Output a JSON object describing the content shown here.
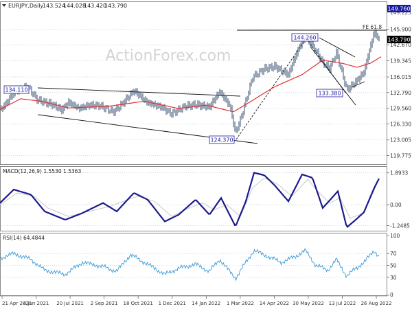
{
  "chart_data": [
    {
      "type": "bar",
      "subtype": "ohlc",
      "title": "EURJPY,Daily",
      "ohlc_readout": [
        "143.524",
        "144.028",
        "143.420",
        "143.790"
      ],
      "watermark": "ActionForex.com",
      "ylim": [
        118.0,
        151.5
      ],
      "y_ticks": [
        119.775,
        123.005,
        126.33,
        129.56,
        132.79,
        136.015,
        139.345,
        142.67,
        145.9
      ],
      "y_tick_labels": [
        "119.775",
        "123.005",
        "126.330",
        "129.560",
        "132.790",
        "136.015",
        "139.345",
        "142.670",
        "145.900"
      ],
      "partial_top_label": "149.225",
      "marker_labels": {
        "top": "149.760",
        "last_price": "143.790"
      },
      "annotations": [
        "134.110",
        "124.370",
        "144.260",
        "133.380",
        "FE 61.8"
      ],
      "x_labels": [
        "21 Apr 2021",
        "4 Jun 2021",
        "20 Jul 2021",
        "2 Sep 2021",
        "18 Oct 2021",
        "1 Dec 2021",
        "14 Jan 2022",
        "1 Mar 2022",
        "14 Apr 2022",
        "30 May 2022",
        "13 Jul 2022",
        "26 Aug 2022"
      ],
      "price_key_points": [
        [
          0,
          129.0
        ],
        [
          22,
          133.0
        ],
        [
          40,
          134.1
        ],
        [
          55,
          131.2
        ],
        [
          75,
          130.4
        ],
        [
          90,
          129.2
        ],
        [
          100,
          130.8
        ],
        [
          115,
          129.5
        ],
        [
          130,
          130.2
        ],
        [
          145,
          130.1
        ],
        [
          165,
          128.8
        ],
        [
          175,
          130.0
        ],
        [
          195,
          133.2
        ],
        [
          215,
          130.7
        ],
        [
          235,
          129.8
        ],
        [
          250,
          128.4
        ],
        [
          270,
          130.0
        ],
        [
          285,
          130.3
        ],
        [
          305,
          129.8
        ],
        [
          320,
          133.0
        ],
        [
          335,
          130.0
        ],
        [
          343,
          124.37
        ],
        [
          352,
          128.0
        ],
        [
          368,
          136.0
        ],
        [
          385,
          137.7
        ],
        [
          400,
          138.2
        ],
        [
          420,
          136.5
        ],
        [
          435,
          142.0
        ],
        [
          445,
          144.26
        ],
        [
          460,
          141.5
        ],
        [
          470,
          139.0
        ],
        [
          480,
          137.8
        ],
        [
          490,
          141.0
        ],
        [
          500,
          136.0
        ],
        [
          505,
          133.38
        ],
        [
          515,
          134.5
        ],
        [
          530,
          137.0
        ],
        [
          538,
          141.5
        ],
        [
          545,
          145.3
        ],
        [
          552,
          143.79
        ]
      ],
      "moving_average_key_points": [
        [
          0,
          129.3
        ],
        [
          30,
          131.5
        ],
        [
          60,
          131.0
        ],
        [
          100,
          129.6
        ],
        [
          160,
          130.0
        ],
        [
          210,
          131.0
        ],
        [
          260,
          129.5
        ],
        [
          300,
          130.2
        ],
        [
          340,
          128.8
        ],
        [
          360,
          130.5
        ],
        [
          400,
          134.0
        ],
        [
          440,
          136.5
        ],
        [
          470,
          139.5
        ],
        [
          500,
          138.8
        ],
        [
          520,
          138.0
        ],
        [
          540,
          138.9
        ],
        [
          555,
          140.2
        ]
      ]
    },
    {
      "type": "line",
      "title": "MACD(12,26,9) 1.5530 1.5363",
      "y_tick_labels": [
        "1.8933",
        "0.00",
        "-1.2485"
      ],
      "y_ticks": [
        1.8933,
        0.0,
        -1.2485
      ],
      "ylim": [
        -1.55,
        2.25
      ],
      "macd_key_points": [
        [
          0,
          0.1
        ],
        [
          20,
          0.9
        ],
        [
          45,
          0.6
        ],
        [
          65,
          -0.4
        ],
        [
          95,
          -0.9
        ],
        [
          120,
          -0.5
        ],
        [
          150,
          0.1
        ],
        [
          170,
          -0.4
        ],
        [
          195,
          0.7
        ],
        [
          215,
          0.3
        ],
        [
          240,
          -1.0
        ],
        [
          260,
          -0.6
        ],
        [
          285,
          0.3
        ],
        [
          305,
          -0.6
        ],
        [
          322,
          0.4
        ],
        [
          343,
          -1.3
        ],
        [
          358,
          0.2
        ],
        [
          370,
          1.9
        ],
        [
          385,
          1.75
        ],
        [
          400,
          1.15
        ],
        [
          420,
          0.2
        ],
        [
          440,
          1.8
        ],
        [
          455,
          1.6
        ],
        [
          470,
          -0.2
        ],
        [
          492,
          0.8
        ],
        [
          505,
          -1.35
        ],
        [
          518,
          -0.9
        ],
        [
          530,
          -0.45
        ],
        [
          545,
          1.0
        ],
        [
          552,
          1.553
        ]
      ],
      "signal_key_points": [
        [
          0,
          0.0
        ],
        [
          25,
          0.7
        ],
        [
          50,
          0.5
        ],
        [
          70,
          -0.2
        ],
        [
          100,
          -0.7
        ],
        [
          130,
          -0.4
        ],
        [
          160,
          -0.1
        ],
        [
          200,
          0.5
        ],
        [
          225,
          0.2
        ],
        [
          250,
          -0.7
        ],
        [
          275,
          -0.2
        ],
        [
          295,
          0.1
        ],
        [
          312,
          -0.3
        ],
        [
          330,
          0.0
        ],
        [
          350,
          -0.7
        ],
        [
          368,
          1.0
        ],
        [
          385,
          1.6
        ],
        [
          405,
          1.2
        ],
        [
          425,
          0.5
        ],
        [
          448,
          1.5
        ],
        [
          465,
          0.7
        ],
        [
          480,
          0.1
        ],
        [
          495,
          0.4
        ],
        [
          510,
          -0.8
        ],
        [
          530,
          -0.5
        ],
        [
          552,
          1.536
        ]
      ]
    },
    {
      "type": "line",
      "title": "RSI(14) 64.4844",
      "y_tick_labels": [
        "100",
        "70",
        "50",
        "30",
        "0"
      ],
      "y_ticks": [
        100,
        70,
        50,
        30,
        0
      ],
      "ylim": [
        0,
        100
      ],
      "rsi_key_points": [
        [
          0,
          62
        ],
        [
          20,
          70
        ],
        [
          45,
          60
        ],
        [
          65,
          42
        ],
        [
          95,
          35
        ],
        [
          120,
          55
        ],
        [
          150,
          48
        ],
        [
          170,
          40
        ],
        [
          190,
          68
        ],
        [
          215,
          52
        ],
        [
          240,
          35
        ],
        [
          260,
          45
        ],
        [
          285,
          52
        ],
        [
          305,
          40
        ],
        [
          320,
          60
        ],
        [
          343,
          28
        ],
        [
          358,
          55
        ],
        [
          370,
          75
        ],
        [
          390,
          65
        ],
        [
          410,
          55
        ],
        [
          430,
          65
        ],
        [
          445,
          75
        ],
        [
          460,
          50
        ],
        [
          478,
          42
        ],
        [
          490,
          60
        ],
        [
          505,
          32
        ],
        [
          518,
          45
        ],
        [
          530,
          55
        ],
        [
          545,
          75
        ],
        [
          552,
          64.48
        ]
      ]
    }
  ],
  "colors": {
    "price_bars": "#1e3a5f",
    "moving_average": "#e03030",
    "macd_line": "#1a1a8c",
    "signal_line": "#c8c8c8",
    "rsi_line": "#3a9ad9",
    "marker_box": "#1a1aa0",
    "last_price_box": "#000000",
    "grid": "#b8bec6",
    "label_text": "#333333"
  }
}
